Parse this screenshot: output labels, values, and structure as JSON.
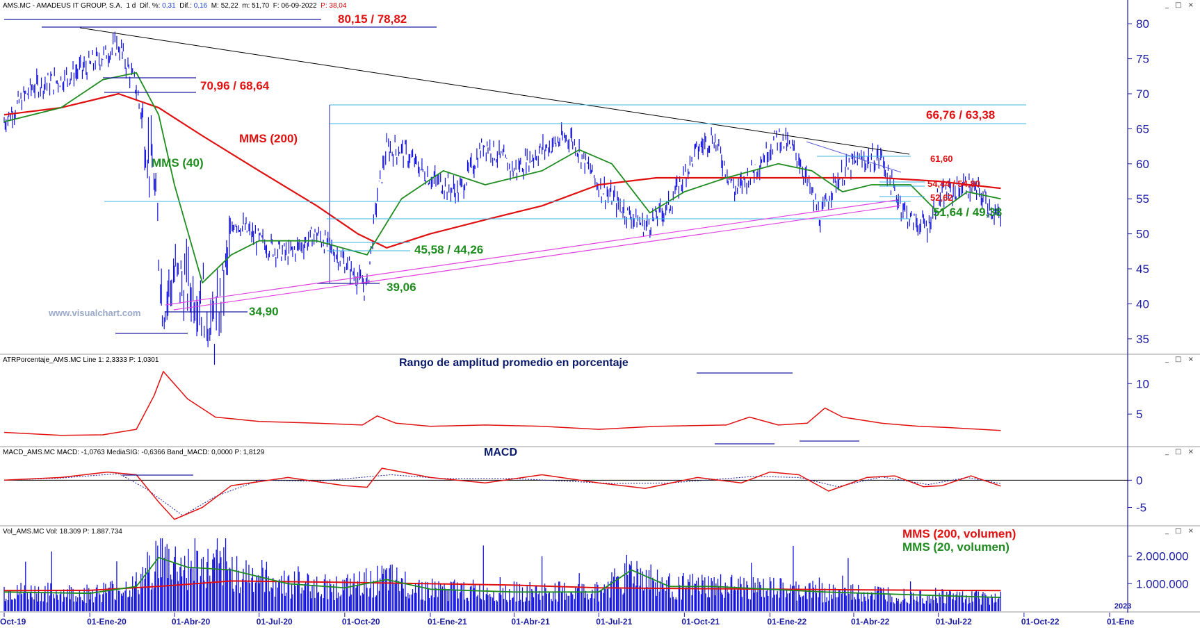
{
  "header": {
    "symbol": "AMS.MC",
    "name": "AMADEUS IT GROUP, S.A.",
    "period": "1 d",
    "dif_pct_label": "Dif. %:",
    "dif_pct": "0,31",
    "dif_label": "Dif.:",
    "dif": "0,16",
    "max_label": "M:",
    "max": "52,22",
    "min_label": "m:",
    "min": "51,70",
    "date_label": "F:",
    "date": "06-09-2022",
    "p_label": "P:",
    "p": "38,04"
  },
  "panels": {
    "atr": {
      "title": "ATRPorcentaje_AMS.MC Line 1: 2,3333  P: 1,0301",
      "label": "Rango de amplitud promedio en porcentaje"
    },
    "macd": {
      "title": "MACD_AMS.MC  MACD: -1,0763  MediaSIG: -0,6366  Band_MACD: 0,0000  P: 1,8129",
      "label": "MACD"
    },
    "vol": {
      "title": "Vol_AMS.MC  Vol: 18.309  P: 1.887.734"
    }
  },
  "window_buttons": "_ □ ×",
  "watermark": "www.visualchart.com",
  "annotations": {
    "r1": "80,15 / 78,82",
    "r2": "70,96 / 68,64",
    "r3": "66,76 / 63,38",
    "r4": "61,60",
    "r5": "54,44 / 54,80",
    "r6": "52,62",
    "s1": "51,64 / 49,38",
    "s2": "45,58 / 44,26",
    "s3": "39,06",
    "s4": "34,90",
    "mms200": "MMS (200)",
    "mms40": "MMS (40)",
    "vol200": "MMS (200, volumen)",
    "vol20": "MMS (20, volumen)"
  },
  "colors": {
    "price": "#1010e0",
    "mms40": "#1e8c1e",
    "mms200": "#e01010",
    "resistance_label": "#e01010",
    "support_label": "#1e8c1e",
    "level_line": "#39b6e6",
    "trend_line_up": "#e040e0",
    "axis_text": "#1a1aa0"
  },
  "chart_data": [
    {
      "type": "line",
      "title": "",
      "series_names": [
        "AMS.MC",
        "MMS (40)",
        "MMS (200)"
      ],
      "x_ticks": [
        "Oct-19",
        "01-Ene-20",
        "01-Abr-20",
        "01-Jul-20",
        "01-Oct-20",
        "01-Ene-21",
        "01-Abr-21",
        "01-Jul-21",
        "01-Oct-21",
        "01-Ene-22",
        "01-Abr-22",
        "01-Jul-22",
        "01-Oct-22",
        "01-Ene"
      ],
      "x_ticks_extra": "2023",
      "y_ticks": [
        35,
        40,
        45,
        50,
        55,
        60,
        65,
        70,
        75,
        80
      ],
      "ylim": [
        33,
        82
      ],
      "price": {
        "x": [
          "2019-10-01",
          "2019-11-01",
          "2019-12-01",
          "2020-01-01",
          "2020-02-01",
          "2020-02-20",
          "2020-03-10",
          "2020-03-20",
          "2020-04-01",
          "2020-05-01",
          "2020-05-15",
          "2020-06-05",
          "2020-07-01",
          "2020-08-01",
          "2020-09-01",
          "2020-10-01",
          "2020-10-25",
          "2020-11-05",
          "2020-11-15",
          "2020-12-01",
          "2021-01-01",
          "2021-02-01",
          "2021-03-01",
          "2021-04-01",
          "2021-05-01",
          "2021-06-01",
          "2021-07-01",
          "2021-08-01",
          "2021-08-20",
          "2021-09-15",
          "2021-10-15",
          "2021-11-01",
          "2021-11-25",
          "2021-12-20",
          "2022-01-10",
          "2022-02-01",
          "2022-02-25",
          "2022-03-10",
          "2022-04-01",
          "2022-05-01",
          "2022-05-15",
          "2022-06-01",
          "2022-06-20",
          "2022-07-01",
          "2022-08-01",
          "2022-08-20",
          "2022-09-06"
        ],
        "y": [
          66,
          71,
          72,
          74,
          77,
          71,
          58,
          40,
          44,
          41,
          36,
          52,
          49,
          47,
          50,
          46,
          42,
          55,
          62,
          62,
          58,
          56,
          63,
          59,
          62,
          64,
          57,
          53,
          51,
          54,
          62,
          64,
          56,
          60,
          64,
          61,
          52,
          57,
          60,
          61,
          56,
          52,
          51,
          55,
          57,
          55,
          51.9
        ]
      },
      "mms40": {
        "x": [
          "2019-10-01",
          "2019-12-01",
          "2020-01-15",
          "2020-02-20",
          "2020-03-15",
          "2020-04-01",
          "2020-05-01",
          "2020-06-01",
          "2020-07-01",
          "2020-09-01",
          "2020-10-25",
          "2020-12-01",
          "2021-01-15",
          "2021-03-01",
          "2021-05-01",
          "2021-06-10",
          "2021-07-15",
          "2021-08-25",
          "2021-10-01",
          "2021-11-15",
          "2022-01-10",
          "2022-02-15",
          "2022-03-20",
          "2022-04-20",
          "2022-06-01",
          "2022-07-01",
          "2022-08-01",
          "2022-09-06"
        ],
        "y": [
          66,
          68,
          72,
          73,
          67,
          57,
          43,
          47,
          49,
          49,
          47,
          55,
          59,
          57,
          59,
          62,
          60,
          53,
          56,
          58,
          60,
          59,
          56,
          57,
          57,
          53,
          56,
          55
        ]
      },
      "mms200": {
        "x": [
          "2019-10-01",
          "2019-12-01",
          "2020-02-01",
          "2020-03-15",
          "2020-05-01",
          "2020-07-01",
          "2020-09-01",
          "2020-10-15",
          "2020-11-15",
          "2021-01-01",
          "2021-03-01",
          "2021-05-01",
          "2021-07-01",
          "2021-09-01",
          "2021-11-01",
          "2022-01-01",
          "2022-03-01",
          "2022-05-01",
          "2022-07-01",
          "2022-09-06"
        ],
        "y": [
          67,
          68,
          70,
          68,
          64,
          59,
          54,
          50,
          48,
          50,
          52,
          54,
          57,
          58,
          58,
          58,
          58,
          58,
          57.5,
          56.5
        ]
      }
    },
    {
      "type": "line",
      "title": "ATRPorcentaje_AMS.MC",
      "series_names": [
        "Line 1"
      ],
      "y_ticks": [
        5,
        10
      ],
      "ylim": [
        0,
        13
      ],
      "x": [
        "2019-10-01",
        "2019-12-01",
        "2020-01-15",
        "2020-02-20",
        "2020-03-10",
        "2020-03-20",
        "2020-04-15",
        "2020-05-15",
        "2020-07-01",
        "2020-09-01",
        "2020-10-20",
        "2020-11-05",
        "2020-11-25",
        "2021-01-01",
        "2021-03-01",
        "2021-05-01",
        "2021-07-01",
        "2021-09-01",
        "2021-11-15",
        "2021-12-10",
        "2022-01-10",
        "2022-02-10",
        "2022-03-01",
        "2022-03-20",
        "2022-05-01",
        "2022-06-10",
        "2022-07-10",
        "2022-09-06"
      ],
      "y": [
        2,
        1.5,
        1.6,
        2.5,
        8,
        12,
        7.5,
        4.5,
        3.8,
        3.5,
        3.2,
        4.7,
        3.5,
        3,
        3.2,
        3,
        2.5,
        3,
        3.2,
        4.5,
        3.2,
        3.5,
        6,
        4.5,
        3.5,
        3,
        2.8,
        2.3
      ]
    },
    {
      "type": "line",
      "title": "MACD_AMS.MC",
      "series_names": [
        "MACD",
        "MediaSIG"
      ],
      "y_ticks": [
        -5,
        0
      ],
      "ylim": [
        -8,
        4
      ],
      "macd": {
        "x": [
          "2019-10-01",
          "2019-12-01",
          "2020-01-20",
          "2020-02-20",
          "2020-03-15",
          "2020-04-01",
          "2020-05-01",
          "2020-06-01",
          "2020-08-01",
          "2020-10-01",
          "2020-10-25",
          "2020-11-10",
          "2021-01-01",
          "2021-03-01",
          "2021-05-01",
          "2021-07-01",
          "2021-08-20",
          "2021-10-15",
          "2021-12-01",
          "2022-01-01",
          "2022-02-01",
          "2022-03-05",
          "2022-04-15",
          "2022-05-15",
          "2022-06-15",
          "2022-07-05",
          "2022-08-05",
          "2022-09-06"
        ],
        "y": [
          0,
          0.5,
          1.5,
          1,
          -4,
          -7.2,
          -5,
          -1,
          0.5,
          -1,
          -1.3,
          2.2,
          0.5,
          -0.5,
          1,
          -0.5,
          -1.5,
          0.5,
          -0.5,
          1.5,
          1,
          -2,
          0.5,
          0.8,
          -1.2,
          -1,
          0.8,
          -1.08
        ]
      },
      "signal": {
        "x": [
          "2019-10-01",
          "2019-12-01",
          "2020-02-01",
          "2020-03-01",
          "2020-04-10",
          "2020-05-15",
          "2020-07-01",
          "2020-09-01",
          "2020-11-20",
          "2021-01-15",
          "2021-04-01",
          "2021-07-15",
          "2021-09-15",
          "2021-12-15",
          "2022-02-01",
          "2022-03-15",
          "2022-05-01",
          "2022-06-20",
          "2022-08-01",
          "2022-09-06"
        ],
        "y": [
          0,
          0.4,
          1.2,
          -1.5,
          -6.5,
          -3,
          0,
          -0.2,
          1,
          0.3,
          0.3,
          -0.6,
          -0.5,
          0.7,
          0.5,
          -1.2,
          0.6,
          -0.8,
          0.5,
          -0.64
        ]
      }
    },
    {
      "type": "bar",
      "title": "Vol_AMS.MC",
      "series_names": [
        "Volumen",
        "MMS (20, volumen)",
        "MMS (200, volumen)"
      ],
      "y_ticks": [
        1000000,
        2000000
      ],
      "y_tick_labels": [
        "1.000.000",
        "2.000.000"
      ],
      "ylim": [
        0,
        2700000
      ],
      "mms20": {
        "x": [
          "2019-10-01",
          "2020-01-01",
          "2020-02-20",
          "2020-03-15",
          "2020-04-15",
          "2020-06-01",
          "2020-08-01",
          "2020-10-01",
          "2020-11-15",
          "2021-01-01",
          "2021-04-01",
          "2021-07-01",
          "2021-08-05",
          "2021-09-15",
          "2021-11-01",
          "2022-01-01",
          "2022-03-01",
          "2022-06-01",
          "2022-09-06"
        ],
        "y": [
          700000,
          650000,
          900000,
          1950000,
          1600000,
          1500000,
          1000000,
          850000,
          1150000,
          800000,
          700000,
          700000,
          1500000,
          900000,
          900000,
          800000,
          700000,
          600000,
          500000
        ]
      },
      "mms200": {
        "x": [
          "2019-10-01",
          "2020-01-01",
          "2020-03-15",
          "2020-06-01",
          "2020-10-01",
          "2021-01-01",
          "2021-04-01",
          "2021-07-01",
          "2022-01-01",
          "2022-04-01",
          "2022-09-06"
        ],
        "y": [
          750000,
          760000,
          900000,
          1100000,
          1050000,
          1000000,
          950000,
          850000,
          800000,
          780000,
          750000
        ]
      }
    }
  ]
}
